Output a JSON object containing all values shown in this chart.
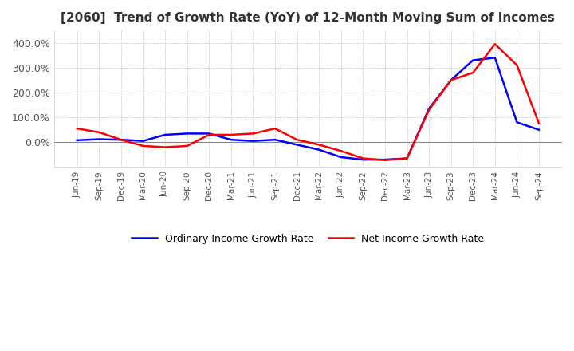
{
  "title": "[2060]  Trend of Growth Rate (YoY) of 12-Month Moving Sum of Incomes",
  "title_fontsize": 11,
  "ylim": [
    -100,
    450
  ],
  "yticks": [
    0.0,
    100.0,
    200.0,
    300.0,
    400.0
  ],
  "background_color": "#ffffff",
  "grid_color": "#aaaaaa",
  "legend_labels": [
    "Ordinary Income Growth Rate",
    "Net Income Growth Rate"
  ],
  "legend_colors": [
    "#0000ff",
    "#ff0000"
  ],
  "x_labels": [
    "Jun-19",
    "Sep-19",
    "Dec-19",
    "Mar-20",
    "Jun-20",
    "Sep-20",
    "Dec-20",
    "Mar-21",
    "Jun-21",
    "Sep-21",
    "Dec-21",
    "Mar-22",
    "Jun-22",
    "Sep-22",
    "Dec-22",
    "Mar-23",
    "Jun-23",
    "Sep-23",
    "Dec-23",
    "Mar-24",
    "Jun-24",
    "Sep-24"
  ],
  "ordinary_income_growth": [
    8.0,
    12.0,
    10.0,
    5.0,
    30.0,
    35.0,
    35.0,
    10.0,
    5.0,
    10.0,
    -10.0,
    -30.0,
    -60.0,
    -70.0,
    -70.0,
    -65.0,
    135.0,
    250.0,
    330.0,
    340.0,
    80.0,
    50.0
  ],
  "net_income_growth": [
    55.0,
    40.0,
    10.0,
    -15.0,
    -20.0,
    -15.0,
    30.0,
    30.0,
    35.0,
    55.0,
    10.0,
    -10.0,
    -35.0,
    -65.0,
    -72.0,
    -65.0,
    130.0,
    250.0,
    280.0,
    395.0,
    310.0,
    75.0
  ]
}
